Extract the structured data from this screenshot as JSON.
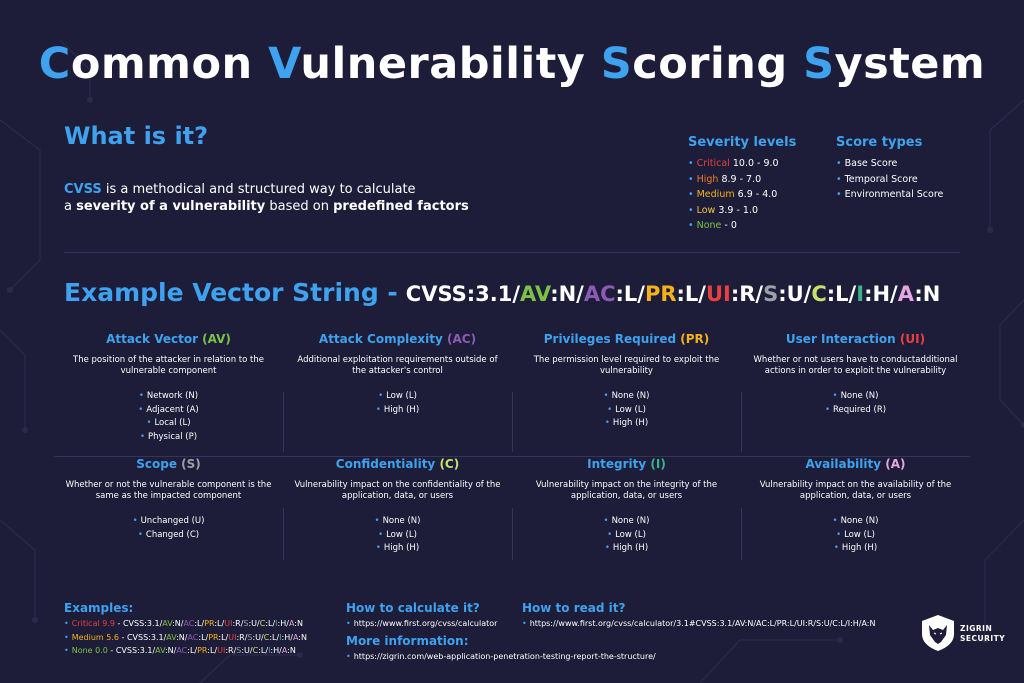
{
  "title": {
    "words": [
      {
        "cap": "C",
        "rest": "ommon "
      },
      {
        "cap": "V",
        "rest": "ulnerability "
      },
      {
        "cap": "S",
        "rest": "coring "
      },
      {
        "cap": "S",
        "rest": "ystem"
      }
    ]
  },
  "what": {
    "heading": "What is it?",
    "line1_cvss": "CVSS",
    "line1_rest": " is a methodical and structured way to calculate",
    "line2_a": "a ",
    "line2_bold1": "severity of a vulnerability",
    "line2_mid": " based on ",
    "line2_bold2": "predefined factors"
  },
  "severity": {
    "heading": "Severity levels",
    "items": [
      {
        "name": "Critical",
        "range": " 10.0 - 9.0",
        "color": "#e8403f"
      },
      {
        "name": "High",
        "range": " 8.9 - 7.0",
        "color": "#f07c2e"
      },
      {
        "name": "Medium",
        "range": " 6.9 - 4.0",
        "color": "#f3b21b"
      },
      {
        "name": "Low",
        "range": " 3.9 - 1.0",
        "color": "#f1c83c"
      },
      {
        "name": "None",
        "range": " - 0",
        "color": "#7dc246"
      }
    ]
  },
  "score_types": {
    "heading": "Score types",
    "items": [
      "Base Score",
      "Temporal Score",
      "Environmental Score"
    ]
  },
  "vector": {
    "label": "Example Vector String -",
    "parts": [
      {
        "t": "CVSS:3.1/",
        "c": "#ffffff"
      },
      {
        "t": "AV",
        "c": "#7dc246"
      },
      {
        "t": ":N/",
        "c": "#ffffff"
      },
      {
        "t": "AC",
        "c": "#8c5bb5"
      },
      {
        "t": ":L/",
        "c": "#ffffff"
      },
      {
        "t": "PR",
        "c": "#f3b21b"
      },
      {
        "t": ":L/",
        "c": "#ffffff"
      },
      {
        "t": "UI",
        "c": "#e8403f"
      },
      {
        "t": ":R/",
        "c": "#ffffff"
      },
      {
        "t": "S",
        "c": "#9aa1ab"
      },
      {
        "t": ":U/",
        "c": "#ffffff"
      },
      {
        "t": "C",
        "c": "#c6e26a"
      },
      {
        "t": ":L/",
        "c": "#ffffff"
      },
      {
        "t": "I",
        "c": "#39b48d"
      },
      {
        "t": ":H/",
        "c": "#ffffff"
      },
      {
        "t": "A",
        "c": "#e4a7e0"
      },
      {
        "t": ":N",
        "c": "#ffffff"
      }
    ]
  },
  "metrics": [
    {
      "name": "Attack Vector ",
      "abbr": "(AV)",
      "abbr_color": "#7dc246",
      "desc": "The position of the attacker in relation to the vulnerable component",
      "values": [
        "Network (N)",
        "Adjacent (A)",
        "Local (L)",
        "Physical (P)"
      ]
    },
    {
      "name": "Attack Complexity ",
      "abbr": "(AC)",
      "abbr_color": "#8c5bb5",
      "desc": "Additional exploitation requirements outside of the attacker's control",
      "values": [
        "Low (L)",
        "High (H)"
      ]
    },
    {
      "name": "Privileges Required ",
      "abbr": "(PR)",
      "abbr_color": "#f3b21b",
      "desc": "The permission level required to exploit the vulnerability",
      "values": [
        "None (N)",
        "Low (L)",
        "High (H)"
      ]
    },
    {
      "name": "User Interaction ",
      "abbr": "(UI)",
      "abbr_color": "#e8403f",
      "desc": "Whether or not users have to conductadditional actions in order to exploit the vulnerability",
      "values": [
        "None (N)",
        "Required (R)"
      ]
    },
    {
      "name": "Scope ",
      "abbr": "(S)",
      "abbr_color": "#9aa1ab",
      "desc": "Whether or not the vulnerable component is the same as the impacted component",
      "values": [
        "Unchanged (U)",
        "Changed (C)"
      ]
    },
    {
      "name": "Confidentiality ",
      "abbr": "(C)",
      "abbr_color": "#c6e26a",
      "desc": "Vulnerability impact on the confidentiality of the application, data, or users",
      "values": [
        "None (N)",
        "Low (L)",
        "High (H)"
      ]
    },
    {
      "name": "Integrity ",
      "abbr": "(I)",
      "abbr_color": "#39b48d",
      "desc": "Vulnerability impact on the integrity of the application, data, or users",
      "values": [
        "None (N)",
        "Low (L)",
        "High (H)"
      ]
    },
    {
      "name": "Availability ",
      "abbr": "(A)",
      "abbr_color": "#e4a7e0",
      "desc": "Vulnerability impact on the availability of the application, data, or users",
      "values": [
        "None (N)",
        "Low (L)",
        "High (H)"
      ]
    }
  ],
  "examples": {
    "heading": "Examples:",
    "items": [
      {
        "label": "Critical 9.9",
        "color": "#e8403f",
        "sep": " - "
      },
      {
        "label": "Medium 5.6",
        "color": "#f3b21b",
        "sep": " - "
      },
      {
        "label": "None 0.0",
        "color": "#7dc246",
        "sep": " - "
      }
    ],
    "vector_prefix": "CVSS:3.1/",
    "vectors": [
      [
        [
          "AV",
          "#7dc246"
        ],
        [
          ":N/",
          "#ffffff"
        ],
        [
          "AC",
          "#8c5bb5"
        ],
        [
          ":L/",
          "#ffffff"
        ],
        [
          "PR",
          "#f3b21b"
        ],
        [
          ":L/",
          "#ffffff"
        ],
        [
          "UI",
          "#e8403f"
        ],
        [
          ":R/",
          "#ffffff"
        ],
        [
          "S",
          "#9aa1ab"
        ],
        [
          ":U/",
          "#ffffff"
        ],
        [
          "C",
          "#c6e26a"
        ],
        [
          ":L/",
          "#ffffff"
        ],
        [
          "I",
          "#39b48d"
        ],
        [
          ":H/",
          "#ffffff"
        ],
        [
          "A",
          "#e4a7e0"
        ],
        [
          ":N",
          "#ffffff"
        ]
      ],
      [
        [
          "AV",
          "#7dc246"
        ],
        [
          ":N/",
          "#ffffff"
        ],
        [
          "AC",
          "#8c5bb5"
        ],
        [
          ":L/",
          "#ffffff"
        ],
        [
          "PR",
          "#f3b21b"
        ],
        [
          ":L/",
          "#ffffff"
        ],
        [
          "UI",
          "#e8403f"
        ],
        [
          ":R/",
          "#ffffff"
        ],
        [
          "S",
          "#9aa1ab"
        ],
        [
          ":U/",
          "#ffffff"
        ],
        [
          "C",
          "#c6e26a"
        ],
        [
          ":L/",
          "#ffffff"
        ],
        [
          "I",
          "#39b48d"
        ],
        [
          ":H/",
          "#ffffff"
        ],
        [
          "A",
          "#e4a7e0"
        ],
        [
          ":N",
          "#ffffff"
        ]
      ],
      [
        [
          "AV",
          "#7dc246"
        ],
        [
          ":N/",
          "#ffffff"
        ],
        [
          "AC",
          "#8c5bb5"
        ],
        [
          ":L/",
          "#ffffff"
        ],
        [
          "PR",
          "#f3b21b"
        ],
        [
          ":L/",
          "#ffffff"
        ],
        [
          "UI",
          "#e8403f"
        ],
        [
          ":R/",
          "#ffffff"
        ],
        [
          "S",
          "#9aa1ab"
        ],
        [
          ":U/",
          "#ffffff"
        ],
        [
          "C",
          "#c6e26a"
        ],
        [
          ":L/",
          "#ffffff"
        ],
        [
          "I",
          "#39b48d"
        ],
        [
          ":H/",
          "#ffffff"
        ],
        [
          "A",
          "#e4a7e0"
        ],
        [
          ":N",
          "#ffffff"
        ]
      ]
    ]
  },
  "calc": {
    "heading": "How to calculate it?",
    "url": "https://www.first.org/cvss/calculator"
  },
  "read": {
    "heading": "How to read it?",
    "url": "https://www.first.org/cvss/calculator/3.1#CVSS:3.1/AV:N/AC:L/PR:L/UI:R/S:U/C:L/I:H/A:N"
  },
  "more": {
    "heading": "More information:",
    "url": "https://zigrin.com/web-application-penetration-testing-report-the-structure/"
  },
  "logo": {
    "icon": "wolf-icon",
    "line1": "ZIGRIN",
    "line2": "SECURITY"
  },
  "accent": "#3ea2ef",
  "background": "#1e1d39"
}
